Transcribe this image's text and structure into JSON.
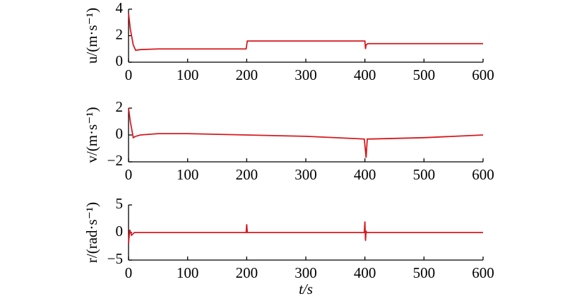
{
  "chart_data": [
    {
      "type": "line",
      "ylabel": "u/(m·s⁻¹)",
      "x": [
        0,
        3,
        8,
        12,
        20,
        50,
        100,
        199,
        200,
        201,
        300,
        399,
        400,
        401,
        402,
        405,
        500,
        600
      ],
      "series": [
        {
          "color": "#d7191f",
          "values": [
            3.7,
            2.5,
            1.3,
            0.9,
            0.95,
            1.0,
            1.0,
            1.0,
            1.3,
            1.6,
            1.6,
            1.6,
            1.6,
            1.0,
            1.3,
            1.4,
            1.4,
            1.4
          ]
        }
      ],
      "xlim": [
        0,
        600
      ],
      "xticks": [
        0,
        100,
        200,
        300,
        400,
        500,
        600
      ],
      "ylim": [
        0,
        4
      ],
      "yticks": [
        0,
        2,
        4
      ]
    },
    {
      "type": "line",
      "ylabel": "v/(m·s⁻¹)",
      "x": [
        0,
        3,
        8,
        12,
        20,
        50,
        100,
        200,
        300,
        399,
        401,
        402,
        404,
        410,
        500,
        600
      ],
      "series": [
        {
          "color": "#d7191f",
          "values": [
            2,
            1,
            -0.2,
            -0.1,
            0,
            0.1,
            0.1,
            0,
            -0.1,
            -0.3,
            -1.2,
            -1.7,
            -0.3,
            -0.3,
            -0.2,
            0
          ]
        }
      ],
      "xlim": [
        0,
        600
      ],
      "xticks": [
        0,
        100,
        200,
        300,
        400,
        500,
        600
      ],
      "ylim": [
        -2,
        2
      ],
      "yticks": [
        {
          "value": -2,
          "label": "−2"
        },
        0,
        2
      ]
    },
    {
      "type": "line",
      "ylabel": "r/(rad·s⁻¹)",
      "xlabel": "t/s",
      "x": [
        0,
        2,
        5,
        10,
        20,
        199,
        200,
        201,
        202,
        300,
        399,
        400,
        401,
        402,
        403,
        600
      ],
      "series": [
        {
          "color": "#d7191f",
          "values": [
            -2,
            0.5,
            -0.5,
            0,
            0,
            0,
            1.5,
            0,
            0,
            0,
            0,
            2,
            -1.5,
            0.3,
            0,
            0
          ]
        }
      ],
      "xlim": [
        0,
        600
      ],
      "xticks": [
        0,
        100,
        200,
        300,
        400,
        500,
        600
      ],
      "ylim": [
        -5,
        5
      ],
      "yticks": [
        {
          "value": -5,
          "label": "−5"
        },
        0,
        5
      ]
    }
  ]
}
